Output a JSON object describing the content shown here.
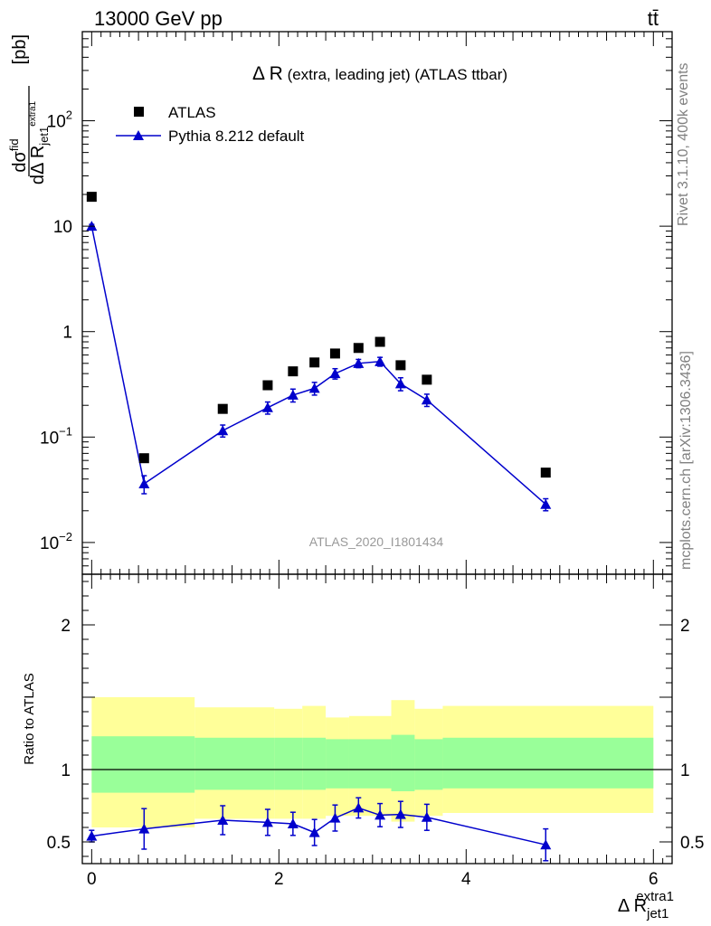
{
  "header": {
    "energy_label": "13000 GeV pp",
    "process_label": "tt̄"
  },
  "side": {
    "rivet_label": "Rivet 3.1.10,  400k events",
    "mcplots_label": "mcplots.cern.ch [arXiv:1306.3436]"
  },
  "chart_data": [
    {
      "type": "scatter",
      "title_main": "Δ R",
      "title_rest": " (extra, leading jet) (ATLAS ttbar)",
      "ylabel_num": "dσ",
      "ylabel_num_sup": "fid",
      "ylabel_den": "dΔ R",
      "ylabel_den_sub": "jet1",
      "ylabel_den_sup": "extra1",
      "ylabel_unit": "[pb]",
      "y_scale": "log",
      "ylim": [
        0.005,
        700
      ],
      "xlim": [
        -0.1,
        6.2
      ],
      "y_ticks": [
        {
          "v": 0.01,
          "base": "10",
          "exp": "−2"
        },
        {
          "v": 0.1,
          "base": "10",
          "exp": "−1"
        },
        {
          "v": 1,
          "base": "1",
          "exp": ""
        },
        {
          "v": 10,
          "base": "10",
          "exp": ""
        },
        {
          "v": 100,
          "base": "10",
          "exp": "2"
        }
      ],
      "analysis_label": "ATLAS_2020_I1801434",
      "legend": {
        "data": "ATLAS",
        "mc": "Pythia 8.212 default",
        "placement": "top-left"
      },
      "colors": {
        "data": "#000000",
        "mc": "#0000cc",
        "green_band": "#99ff99",
        "yellow_band": "#ffff99"
      },
      "x": [
        0.0,
        0.56,
        1.4,
        1.88,
        2.15,
        2.38,
        2.6,
        2.85,
        3.08,
        3.3,
        3.58,
        4.85
      ],
      "series": [
        {
          "name": "ATLAS",
          "values": [
            19.0,
            0.063,
            0.185,
            0.31,
            0.42,
            0.51,
            0.62,
            0.7,
            0.8,
            0.48,
            0.35,
            0.046
          ]
        },
        {
          "name": "Pythia 8.212 default",
          "values": [
            10.0,
            0.036,
            0.115,
            0.19,
            0.25,
            0.29,
            0.4,
            0.5,
            0.52,
            0.32,
            0.225,
            0.023
          ],
          "err_lo": [
            0.4,
            0.007,
            0.015,
            0.025,
            0.035,
            0.04,
            0.045,
            0.045,
            0.05,
            0.045,
            0.03,
            0.003
          ],
          "err_hi": [
            0.4,
            0.007,
            0.015,
            0.025,
            0.035,
            0.04,
            0.045,
            0.045,
            0.05,
            0.045,
            0.03,
            0.003
          ]
        }
      ]
    },
    {
      "type": "scatter",
      "ylabel": "Ratio to ATLAS",
      "xlabel_main": "Δ R",
      "xlabel_sub": "jet1",
      "xlabel_sup": "extra1",
      "ylim": [
        0.35,
        2.35
      ],
      "xlim": [
        -0.1,
        6.2
      ],
      "y_ticks": [
        0.5,
        1,
        2
      ],
      "y_tick_labels": [
        "0.5",
        "1",
        "2"
      ],
      "x_ticks": [
        0,
        2,
        4,
        6
      ],
      "x_tick_labels": [
        "0",
        "2",
        "4",
        "6"
      ],
      "bands": [
        {
          "x0": 0.0,
          "x1": 1.1,
          "g_lo": 0.84,
          "g_hi": 1.23,
          "y_lo": 0.6,
          "y_hi": 1.5
        },
        {
          "x0": 1.1,
          "x1": 1.95,
          "g_lo": 0.86,
          "g_hi": 1.22,
          "y_lo": 0.66,
          "y_hi": 1.43
        },
        {
          "x0": 1.95,
          "x1": 2.25,
          "g_lo": 0.86,
          "g_hi": 1.22,
          "y_lo": 0.66,
          "y_hi": 1.42
        },
        {
          "x0": 2.25,
          "x1": 2.5,
          "g_lo": 0.86,
          "g_hi": 1.22,
          "y_lo": 0.66,
          "y_hi": 1.44
        },
        {
          "x0": 2.5,
          "x1": 2.75,
          "g_lo": 0.87,
          "g_hi": 1.21,
          "y_lo": 0.68,
          "y_hi": 1.36
        },
        {
          "x0": 2.75,
          "x1": 3.2,
          "g_lo": 0.87,
          "g_hi": 1.21,
          "y_lo": 0.68,
          "y_hi": 1.37
        },
        {
          "x0": 3.2,
          "x1": 3.45,
          "g_lo": 0.85,
          "g_hi": 1.24,
          "y_lo": 0.64,
          "y_hi": 1.48
        },
        {
          "x0": 3.45,
          "x1": 3.75,
          "g_lo": 0.86,
          "g_hi": 1.21,
          "y_lo": 0.68,
          "y_hi": 1.42
        },
        {
          "x0": 3.75,
          "x1": 6.0,
          "g_lo": 0.87,
          "g_hi": 1.22,
          "y_lo": 0.7,
          "y_hi": 1.44
        }
      ],
      "x": [
        0.0,
        0.56,
        1.4,
        1.88,
        2.15,
        2.38,
        2.6,
        2.85,
        3.08,
        3.3,
        3.58,
        4.85
      ],
      "series": [
        {
          "name": "Pythia 8.212 default",
          "values": [
            0.54,
            0.59,
            0.65,
            0.635,
            0.625,
            0.565,
            0.665,
            0.735,
            0.685,
            0.69,
            0.67,
            0.48
          ],
          "err_lo": [
            0.04,
            0.14,
            0.1,
            0.09,
            0.08,
            0.09,
            0.09,
            0.07,
            0.08,
            0.09,
            0.09,
            0.11
          ],
          "err_hi": [
            0.04,
            0.14,
            0.1,
            0.09,
            0.08,
            0.09,
            0.09,
            0.07,
            0.08,
            0.09,
            0.09,
            0.11
          ]
        }
      ]
    }
  ]
}
